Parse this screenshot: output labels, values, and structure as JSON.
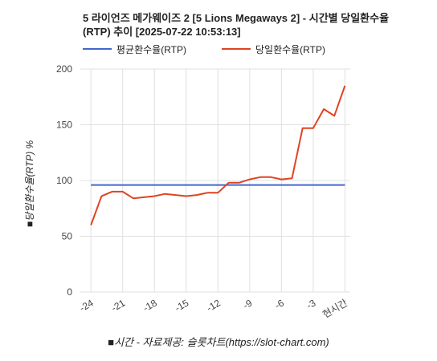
{
  "chart_data": {
    "type": "line",
    "title": "5 라이언즈 메가웨이즈 2 [5 Lions Megaways 2] - 시간별 당일환수율(RTP) 추이 [2025-07-22 10:53:13]",
    "xlabel": "■시간 - 자료제공: 슬롯차트(https://slot-chart.com)",
    "ylabel": "■당일환수율(RTP) %",
    "ylim": [
      0,
      200
    ],
    "yticks": [
      "0",
      "50",
      "100",
      "150",
      "200"
    ],
    "xticks": [
      "-24",
      "-21",
      "-18",
      "-15",
      "-12",
      "-9",
      "-6",
      "-3",
      "현시간"
    ],
    "xtick_positions": [
      -24,
      -21,
      -18,
      -15,
      -12,
      -9,
      -6,
      -3,
      0
    ],
    "grid": true,
    "legend_position": "top-left",
    "x": [
      -24,
      -23,
      -22,
      -21,
      -20,
      -19,
      -18,
      -17,
      -16,
      -15,
      -14,
      -13,
      -12,
      -11,
      -10,
      -9,
      -8,
      -7,
      -6,
      -5,
      -4,
      -3,
      -2,
      -1,
      0
    ],
    "series": [
      {
        "name": "평균환수율(RTP)",
        "color": "#4466cc",
        "values": [
          96,
          96,
          96,
          96,
          96,
          96,
          96,
          96,
          96,
          96,
          96,
          96,
          96,
          96,
          96,
          96,
          96,
          96,
          96,
          96,
          96,
          96,
          96,
          96,
          96
        ]
      },
      {
        "name": "당일환수율(RTP)",
        "color": "#dd4422",
        "values": [
          60,
          86,
          90,
          90,
          84,
          85,
          86,
          88,
          87,
          86,
          87,
          89,
          89,
          98,
          98,
          101,
          103,
          103,
          101,
          102,
          147,
          147,
          164,
          158,
          185
        ]
      }
    ]
  }
}
